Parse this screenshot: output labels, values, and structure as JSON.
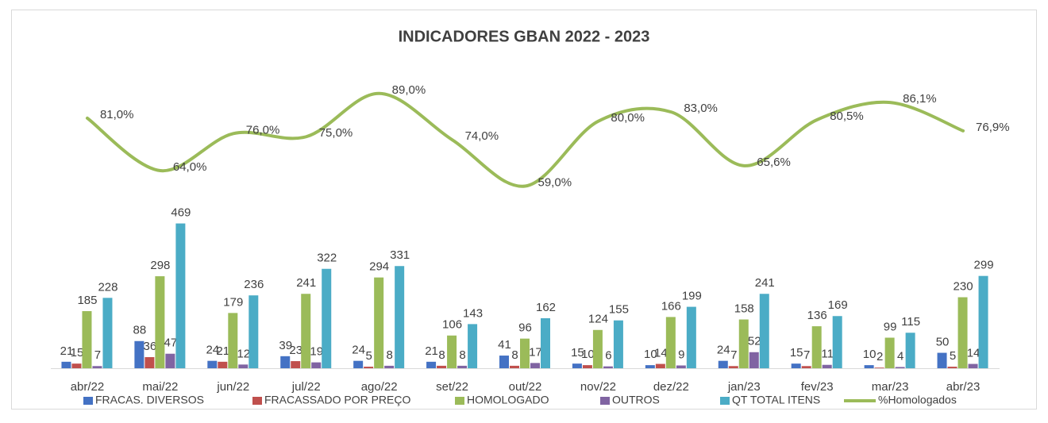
{
  "chart_data": {
    "type": "bar",
    "title": "INDICADORES GBAN 2022 - 2023",
    "categories": [
      "abr/22",
      "mai/22",
      "jun/22",
      "jul/22",
      "ago/22",
      "set/22",
      "out/22",
      "nov/22",
      "dez/22",
      "jan/23",
      "fev/23",
      "mar/23",
      "abr/23"
    ],
    "ylim": [
      0,
      1000
    ],
    "y2lim": [
      0,
      100
    ],
    "series": [
      {
        "name": "FRACAS. DIVERSOS",
        "color": "#4472c4",
        "values": [
          21,
          88,
          24,
          39,
          24,
          21,
          41,
          15,
          10,
          24,
          15,
          10,
          50
        ]
      },
      {
        "name": "FRACASSADO POR PREÇO",
        "color": "#c0504d",
        "values": [
          15,
          36,
          21,
          23,
          5,
          8,
          8,
          10,
          14,
          7,
          7,
          2,
          5
        ]
      },
      {
        "name": "HOMOLOGADO",
        "color": "#9bbb59",
        "values": [
          185,
          298,
          179,
          241,
          294,
          106,
          96,
          124,
          166,
          158,
          136,
          99,
          230
        ]
      },
      {
        "name": "OUTROS",
        "color": "#8064a2",
        "values": [
          7,
          47,
          12,
          19,
          8,
          8,
          17,
          6,
          9,
          52,
          11,
          4,
          14
        ]
      },
      {
        "name": "QT TOTAL ITENS",
        "color": "#4bacc6",
        "values": [
          228,
          469,
          236,
          322,
          331,
          143,
          162,
          155,
          199,
          241,
          169,
          115,
          299
        ]
      },
      {
        "name": "%Homologados",
        "color": "#9bbb59",
        "type": "line",
        "axis": "y2",
        "values": [
          81.0,
          64.0,
          76.0,
          75.0,
          89.0,
          74.0,
          59.0,
          80.0,
          83.0,
          65.6,
          80.5,
          86.1,
          76.9
        ],
        "value_labels": [
          "81,0%",
          "64,0%",
          "76,0%",
          "75,0%",
          "89,0%",
          "74,0%",
          "59,0%",
          "80,0%",
          "83,0%",
          "65,6%",
          "80,5%",
          "86,1%",
          "76,9%"
        ]
      }
    ],
    "legend": "bottom"
  }
}
